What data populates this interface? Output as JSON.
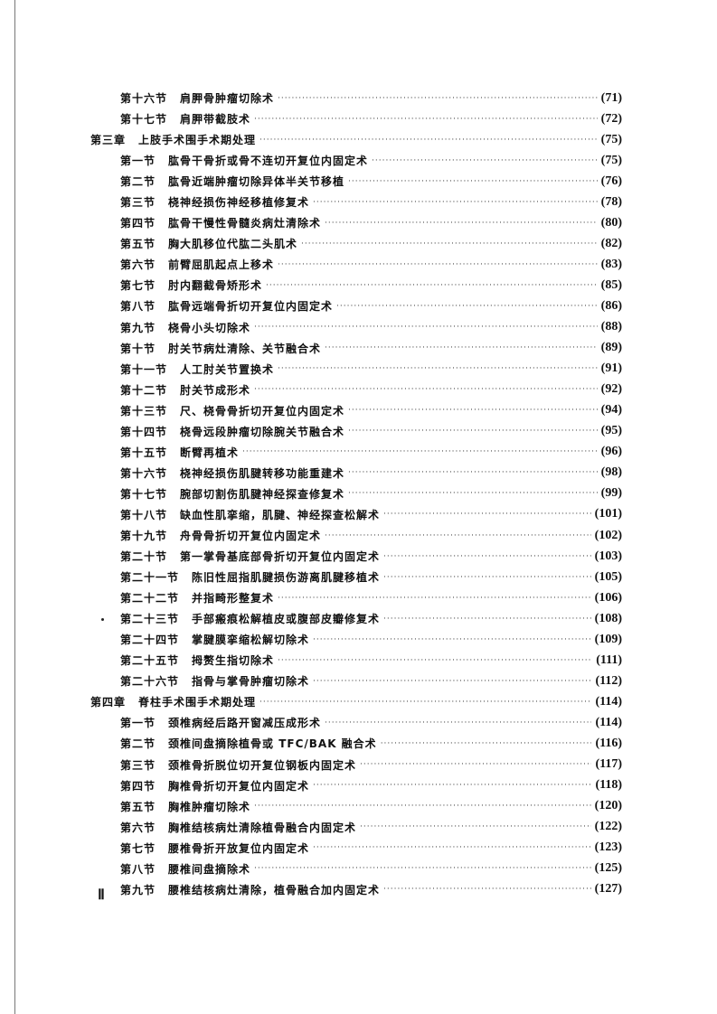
{
  "entries": [
    {
      "level": "section",
      "label": "第十六节",
      "title": "肩胛骨肿瘤切除术",
      "page": "(71)"
    },
    {
      "level": "section",
      "label": "第十七节",
      "title": "肩胛带截肢术",
      "page": "(72)"
    },
    {
      "level": "chapter",
      "label": "第三章",
      "title": "上肢手术围手术期处理",
      "page": "(75)"
    },
    {
      "level": "section",
      "label": "第一节",
      "title": "肱骨干骨折或骨不连切开复位内固定术",
      "page": "(75)"
    },
    {
      "level": "section",
      "label": "第二节",
      "title": "肱骨近端肿瘤切除异体半关节移植",
      "page": "(76)"
    },
    {
      "level": "section",
      "label": "第三节",
      "title": "桡神经损伤神经移植修复术",
      "page": "(78)"
    },
    {
      "level": "section",
      "label": "第四节",
      "title": "肱骨干慢性骨髓炎病灶清除术",
      "page": "(80)"
    },
    {
      "level": "section",
      "label": "第五节",
      "title": "胸大肌移位代肱二头肌术",
      "page": "(82)"
    },
    {
      "level": "section",
      "label": "第六节",
      "title": "前臂屈肌起点上移术",
      "page": "(83)"
    },
    {
      "level": "section",
      "label": "第七节",
      "title": "肘内翻截骨矫形术",
      "page": "(85)"
    },
    {
      "level": "section",
      "label": "第八节",
      "title": "肱骨远端骨折切开复位内固定术",
      "page": "(86)"
    },
    {
      "level": "section",
      "label": "第九节",
      "title": "桡骨小头切除术",
      "page": "(88)"
    },
    {
      "level": "section",
      "label": "第十节",
      "title": "肘关节病灶清除、关节融合术",
      "page": "(89)"
    },
    {
      "level": "section",
      "label": "第十一节",
      "title": "人工肘关节置换术",
      "page": "(91)"
    },
    {
      "level": "section",
      "label": "第十二节",
      "title": "肘关节成形术",
      "page": "(92)"
    },
    {
      "level": "section",
      "label": "第十三节",
      "title": "尺、桡骨骨折切开复位内固定术",
      "page": "(94)"
    },
    {
      "level": "section",
      "label": "第十四节",
      "title": "桡骨远段肿瘤切除腕关节融合术",
      "page": "(95)"
    },
    {
      "level": "section",
      "label": "第十五节",
      "title": "断臂再植术",
      "page": "(96)"
    },
    {
      "level": "section",
      "label": "第十六节",
      "title": "桡神经损伤肌腱转移功能重建术",
      "page": "(98)"
    },
    {
      "level": "section",
      "label": "第十七节",
      "title": "腕部切割伤肌腱神经探查修复术",
      "page": "(99)"
    },
    {
      "level": "section",
      "label": "第十八节",
      "title": "缺血性肌挛缩，肌腱、神经探查松解术",
      "page": "(101)"
    },
    {
      "level": "section",
      "label": "第十九节",
      "title": "舟骨骨折切开复位内固定术",
      "page": "(102)"
    },
    {
      "level": "section",
      "label": "第二十节",
      "title": "第一掌骨基底部骨折切开复位内固定术",
      "page": "(103)"
    },
    {
      "level": "section",
      "label": "第二十一节",
      "title": "陈旧性屈指肌腱损伤游离肌腱移植术",
      "page": "(105)"
    },
    {
      "level": "section",
      "label": "第二十二节",
      "title": "并指畸形整复术",
      "page": "(106)"
    },
    {
      "level": "section",
      "label": "第二十三节",
      "title": "手部瘢痕松解植皮或腹部皮瓣修复术",
      "page": "(108)"
    },
    {
      "level": "section",
      "label": "第二十四节",
      "title": "掌腱膜挛缩松解切除术",
      "page": "(109)"
    },
    {
      "level": "section",
      "label": "第二十五节",
      "title": "拇赘生指切除术",
      "page": "(111)"
    },
    {
      "level": "section",
      "label": "第二十六节",
      "title": "指骨与掌骨肿瘤切除术",
      "page": "(112)"
    },
    {
      "level": "chapter",
      "label": "第四章",
      "title": "脊柱手术围手术期处理",
      "page": "(114)"
    },
    {
      "level": "section",
      "label": "第一节",
      "title": "颈椎病经后路开窗减压成形术",
      "page": "(114)"
    },
    {
      "level": "section",
      "label": "第二节",
      "title": "颈椎间盘摘除植骨或 TFC/BAK 融合术",
      "page": "(116)"
    },
    {
      "level": "section",
      "label": "第三节",
      "title": "颈椎骨折脱位切开复位钢板内固定术",
      "page": "(117)"
    },
    {
      "level": "section",
      "label": "第四节",
      "title": "胸椎骨折切开复位内固定术",
      "page": "(118)"
    },
    {
      "level": "section",
      "label": "第五节",
      "title": "胸椎肿瘤切除术",
      "page": "(120)"
    },
    {
      "level": "section",
      "label": "第六节",
      "title": "胸椎结核病灶清除植骨融合内固定术",
      "page": "(122)"
    },
    {
      "level": "section",
      "label": "第七节",
      "title": "腰椎骨折开放复位内固定术",
      "page": "(123)"
    },
    {
      "level": "section",
      "label": "第八节",
      "title": "腰椎间盘摘除术",
      "page": "(125)"
    },
    {
      "level": "section",
      "label": "第九节",
      "title": "腰椎结核病灶清除，植骨融合加内固定术",
      "page": "(127)"
    }
  ],
  "footer": {
    "page_number": "Ⅱ"
  }
}
